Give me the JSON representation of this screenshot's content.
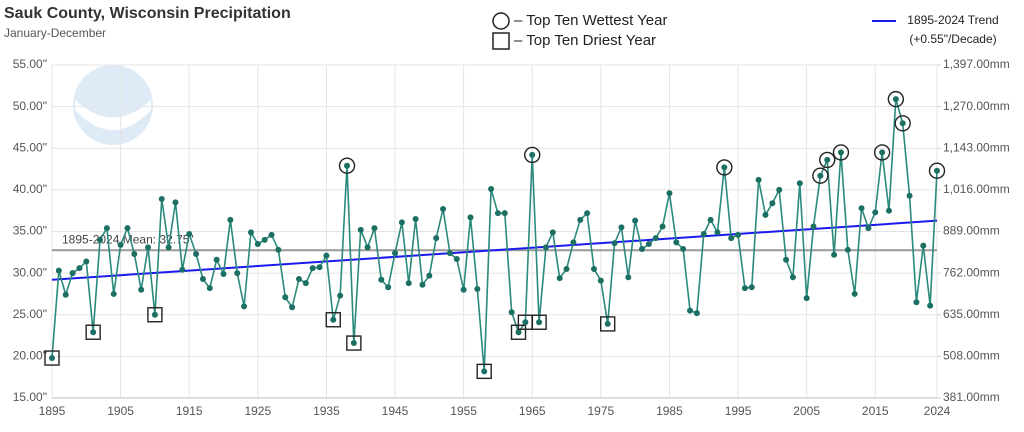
{
  "chart_data": {
    "type": "line",
    "title": "Sauk County, Wisconsin Precipitation",
    "subtitle": "January-December",
    "x": [
      1895,
      1896,
      1897,
      1898,
      1899,
      1900,
      1901,
      1902,
      1903,
      1904,
      1905,
      1906,
      1907,
      1908,
      1909,
      1910,
      1911,
      1912,
      1913,
      1914,
      1915,
      1916,
      1917,
      1918,
      1919,
      1920,
      1921,
      1922,
      1923,
      1924,
      1925,
      1926,
      1927,
      1928,
      1929,
      1930,
      1931,
      1932,
      1933,
      1934,
      1935,
      1936,
      1937,
      1938,
      1939,
      1940,
      1941,
      1942,
      1943,
      1944,
      1945,
      1946,
      1947,
      1948,
      1949,
      1950,
      1951,
      1952,
      1953,
      1954,
      1955,
      1956,
      1957,
      1958,
      1959,
      1960,
      1961,
      1962,
      1963,
      1964,
      1965,
      1966,
      1967,
      1968,
      1969,
      1970,
      1971,
      1972,
      1973,
      1974,
      1975,
      1976,
      1977,
      1978,
      1979,
      1980,
      1981,
      1982,
      1983,
      1984,
      1985,
      1986,
      1987,
      1988,
      1989,
      1990,
      1991,
      1992,
      1993,
      1994,
      1995,
      1996,
      1997,
      1998,
      1999,
      2000,
      2001,
      2002,
      2003,
      2004,
      2005,
      2006,
      2007,
      2008,
      2009,
      2010,
      2011,
      2012,
      2013,
      2014,
      2015,
      2016,
      2017,
      2018,
      2019,
      2020,
      2021,
      2022,
      2023,
      2024
    ],
    "series": [
      {
        "name": "Precipitation",
        "color": "#2a8a7c",
        "marker_color": "#1b6f63",
        "values": [
          19.8,
          30.3,
          27.4,
          30.0,
          30.6,
          31.4,
          22.9,
          34.0,
          35.4,
          27.5,
          33.4,
          35.4,
          32.3,
          28.0,
          33.1,
          25.0,
          38.9,
          33.1,
          38.5,
          30.4,
          34.7,
          32.3,
          29.3,
          28.2,
          31.6,
          29.9,
          36.4,
          30.0,
          26.0,
          34.9,
          33.5,
          34.0,
          34.6,
          32.8,
          27.1,
          25.9,
          29.3,
          28.8,
          30.6,
          30.7,
          32.1,
          24.4,
          27.3,
          42.9,
          21.6,
          35.2,
          33.1,
          35.4,
          29.2,
          28.3,
          32.4,
          36.1,
          28.8,
          36.5,
          28.6,
          29.7,
          34.2,
          37.7,
          32.4,
          31.7,
          28.0,
          36.7,
          28.1,
          18.2,
          40.1,
          37.2,
          37.2,
          25.3,
          22.9,
          24.1,
          44.2,
          24.1,
          33.1,
          34.9,
          29.4,
          30.5,
          33.7,
          36.4,
          37.2,
          30.5,
          29.1,
          23.9,
          33.6,
          35.5,
          29.5,
          36.3,
          32.9,
          33.5,
          34.2,
          35.6,
          39.6,
          33.7,
          32.9,
          25.5,
          25.2,
          34.7,
          36.4,
          34.9,
          42.7,
          34.2,
          34.6,
          28.2,
          28.3,
          41.2,
          37.0,
          38.4,
          40.0,
          31.6,
          29.5,
          40.8,
          27.0,
          35.6,
          41.7,
          43.6,
          32.2,
          44.5,
          32.8,
          27.5,
          37.8,
          35.4,
          37.3,
          44.5,
          37.5,
          50.9,
          48.0,
          39.3,
          26.5,
          33.3,
          26.1,
          42.3
        ]
      }
    ],
    "wettest_years": [
      1938,
      1965,
      1993,
      2007,
      2008,
      2010,
      2016,
      2018,
      2019,
      2024
    ],
    "driest_years": [
      1895,
      1901,
      1910,
      1936,
      1939,
      1958,
      1963,
      1964,
      1966,
      1976
    ],
    "legend_wettest": "– Top Ten Wettest Year",
    "legend_driest": "– Top Ten Driest Year",
    "trend": {
      "name": "1895-2024 Trend",
      "label": "(+0.55\"/Decade)",
      "color": "#1a1aee",
      "x": [
        1895,
        2024
      ],
      "values": [
        29.2,
        36.3
      ]
    },
    "mean": {
      "label": "1895-2024 Mean: 32.75\"",
      "value": 32.75,
      "color": "#999999"
    },
    "xlim": [
      1895,
      2024
    ],
    "xticks": [
      1895,
      1905,
      1915,
      1925,
      1935,
      1945,
      1955,
      1965,
      1975,
      1985,
      1995,
      2005,
      2015,
      2024
    ],
    "ylim": [
      15,
      55
    ],
    "yticks": [
      {
        "value": 15,
        "label": "15.00\""
      },
      {
        "value": 20,
        "label": "20.00\""
      },
      {
        "value": 25,
        "label": "25.00\""
      },
      {
        "value": 30,
        "label": "30.00\""
      },
      {
        "value": 35,
        "label": "35.00\""
      },
      {
        "value": 40,
        "label": "40.00\""
      },
      {
        "value": 45,
        "label": "45.00\""
      },
      {
        "value": 50,
        "label": "50.00\""
      },
      {
        "value": 55,
        "label": "55.00\""
      }
    ],
    "y2lim": [
      381,
      1397
    ],
    "y2ticks": [
      {
        "value": 381,
        "label": "381.00mm"
      },
      {
        "value": 508,
        "label": "508.00mm"
      },
      {
        "value": 635,
        "label": "635.00mm"
      },
      {
        "value": 762,
        "label": "762.00mm"
      },
      {
        "value": 889,
        "label": "889.00mm"
      },
      {
        "value": 1016,
        "label": "1,016.00mm"
      },
      {
        "value": 1143,
        "label": "1,143.00mm"
      },
      {
        "value": 1270,
        "label": "1,270.00mm"
      },
      {
        "value": 1397,
        "label": "1,397.00mm"
      }
    ],
    "grid": true
  }
}
